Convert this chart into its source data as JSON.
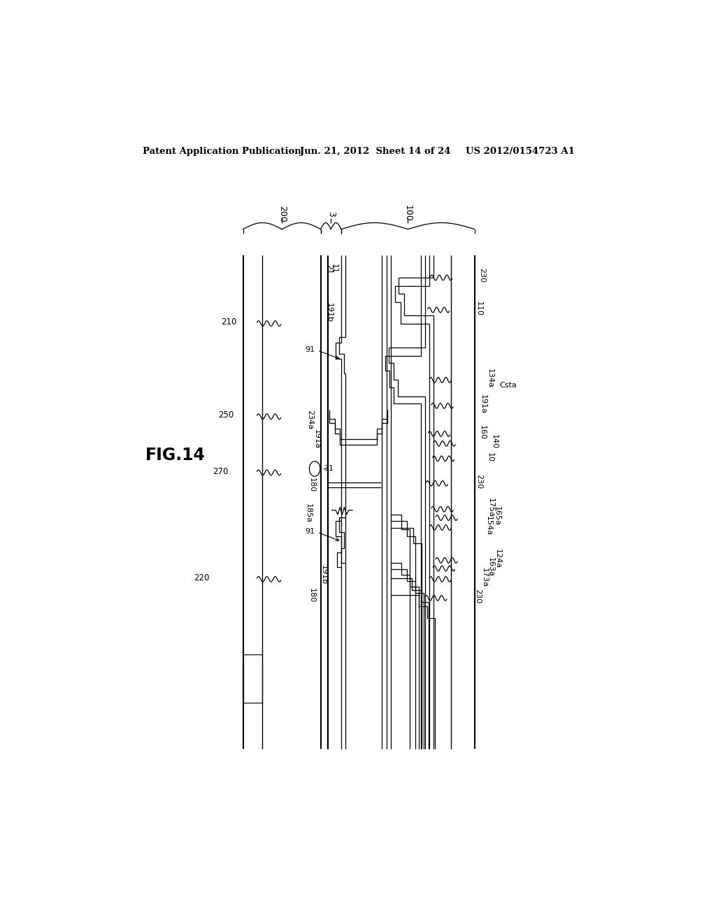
{
  "header_left": "Patent Application Publication",
  "header_mid": "Jun. 21, 2012  Sheet 14 of 24",
  "header_right": "US 2012/0154723 A1",
  "fig_label": "FIG.14",
  "bg_color": "#ffffff"
}
